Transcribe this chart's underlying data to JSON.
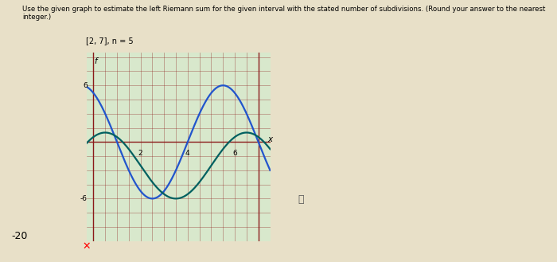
{
  "title_text": "Use the given graph to estimate the left Riemann sum for the given interval with the stated number of subdivisions. (Round your answer to the nearest integer.)",
  "subtitle_text": "[2, 7], n = 5",
  "xlabel": "x",
  "ylabel": "f",
  "xlim": [
    -0.3,
    7.5
  ],
  "ylim": [
    -10.5,
    9.5
  ],
  "grid_color": "#8B1A1A",
  "blue_color": "#2255CC",
  "teal_color": "#006060",
  "answer_label": "-20",
  "bg_color": "#E8E0C8",
  "plot_bg": "#D8E8CC",
  "grid_minor_color": "#9B2B2B"
}
